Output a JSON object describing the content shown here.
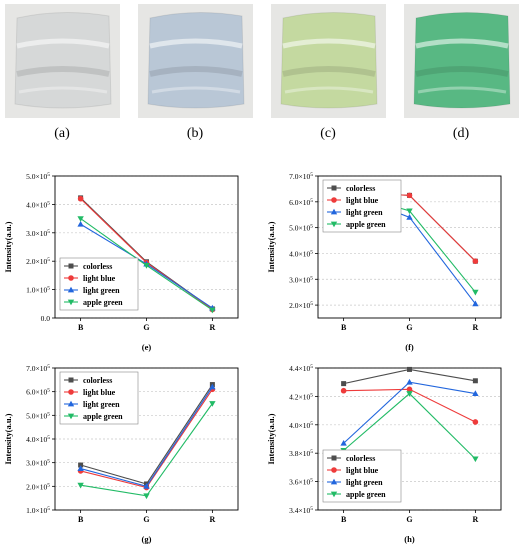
{
  "photos": [
    {
      "label": "(a)",
      "color": "#d6d8d8"
    },
    {
      "label": "(b)",
      "color": "#b9c7d6"
    },
    {
      "label": "(c)",
      "color": "#c4d9a0"
    },
    {
      "label": "(d)",
      "color": "#58b883"
    }
  ],
  "series_colors": [
    "#4d4d4d",
    "#ee3b3b",
    "#2266dd",
    "#22bb66"
  ],
  "chart_data": [
    {
      "type": "line",
      "panel_label": "(e)",
      "categories": [
        "B",
        "G",
        "R"
      ],
      "ylabel": "Intensity(a.u.)",
      "ylim": [
        0,
        500000
      ],
      "yticks": [
        0,
        100000,
        200000,
        300000,
        400000,
        500000
      ],
      "ytick_labels": [
        {
          "m": "0.0",
          "e": ""
        },
        {
          "m": "1.0×10",
          "e": "5"
        },
        {
          "m": "2.0×10",
          "e": "5"
        },
        {
          "m": "3.0×10",
          "e": "5"
        },
        {
          "m": "4.0×10",
          "e": "5"
        },
        {
          "m": "5.0×10",
          "e": "5"
        }
      ],
      "legend_position": "bottom-left",
      "series": [
        {
          "name": "colorless",
          "values": [
            423000,
            198000,
            32000
          ]
        },
        {
          "name": "light blue",
          "values": [
            420000,
            195000,
            30000
          ]
        },
        {
          "name": "light green",
          "values": [
            330000,
            190000,
            35000
          ]
        },
        {
          "name": "apple green",
          "values": [
            350000,
            185000,
            28000
          ]
        }
      ]
    },
    {
      "type": "line",
      "panel_label": "(f)",
      "categories": [
        "B",
        "G",
        "R"
      ],
      "ylabel": "Intensity(a.u.)",
      "ylim": [
        150000,
        700000
      ],
      "yticks": [
        200000,
        300000,
        400000,
        500000,
        600000,
        700000
      ],
      "ytick_labels": [
        {
          "m": "2.0×10",
          "e": "5"
        },
        {
          "m": "3.0×10",
          "e": "5"
        },
        {
          "m": "4.0×10",
          "e": "5"
        },
        {
          "m": "5.0×10",
          "e": "5"
        },
        {
          "m": "6.0×10",
          "e": "5"
        },
        {
          "m": "7.0×10",
          "e": "5"
        }
      ],
      "legend_position": "top-left",
      "series": [
        {
          "name": "colorless",
          "values": [
            638000,
            625000,
            370000
          ]
        },
        {
          "name": "light blue",
          "values": [
            638000,
            625000,
            370000
          ]
        },
        {
          "name": "light green",
          "values": [
            638000,
            540000,
            205000
          ]
        },
        {
          "name": "apple green",
          "values": [
            638000,
            565000,
            250000
          ]
        }
      ]
    },
    {
      "type": "line",
      "panel_label": "(g)",
      "categories": [
        "B",
        "G",
        "R"
      ],
      "ylabel": "Intensity(a.u.)",
      "ylim": [
        100000,
        700000
      ],
      "yticks": [
        100000,
        200000,
        300000,
        400000,
        500000,
        600000,
        700000
      ],
      "ytick_labels": [
        {
          "m": "1.0×10",
          "e": "5"
        },
        {
          "m": "2.0×10",
          "e": "5"
        },
        {
          "m": "3.0×10",
          "e": "5"
        },
        {
          "m": "4.0×10",
          "e": "5"
        },
        {
          "m": "5.0×10",
          "e": "5"
        },
        {
          "m": "6.0×10",
          "e": "5"
        },
        {
          "m": "7.0×10",
          "e": "5"
        }
      ],
      "legend_position": "top-left",
      "series": [
        {
          "name": "colorless",
          "values": [
            290000,
            210000,
            630000
          ]
        },
        {
          "name": "light blue",
          "values": [
            265000,
            195000,
            610000
          ]
        },
        {
          "name": "light green",
          "values": [
            275000,
            200000,
            620000
          ]
        },
        {
          "name": "apple green",
          "values": [
            205000,
            160000,
            550000
          ]
        }
      ]
    },
    {
      "type": "line",
      "panel_label": "(h)",
      "categories": [
        "B",
        "G",
        "R"
      ],
      "ylabel": "Intensity(a.u.)",
      "ylim": [
        340000,
        440000
      ],
      "yticks": [
        340000,
        360000,
        380000,
        400000,
        420000,
        440000
      ],
      "ytick_labels": [
        {
          "m": "3.4×10",
          "e": "5"
        },
        {
          "m": "3.6×10",
          "e": "5"
        },
        {
          "m": "3.8×10",
          "e": "5"
        },
        {
          "m": "4.0×10",
          "e": "5"
        },
        {
          "m": "4.2×10",
          "e": "5"
        },
        {
          "m": "4.4×10",
          "e": "5"
        }
      ],
      "legend_position": "bottom-left",
      "series": [
        {
          "name": "colorless",
          "values": [
            429000,
            439000,
            431000
          ]
        },
        {
          "name": "light blue",
          "values": [
            424000,
            425000,
            402000
          ]
        },
        {
          "name": "light green",
          "values": [
            387000,
            430000,
            422000
          ]
        },
        {
          "name": "apple green",
          "values": [
            382000,
            422000,
            376000
          ]
        }
      ]
    }
  ]
}
